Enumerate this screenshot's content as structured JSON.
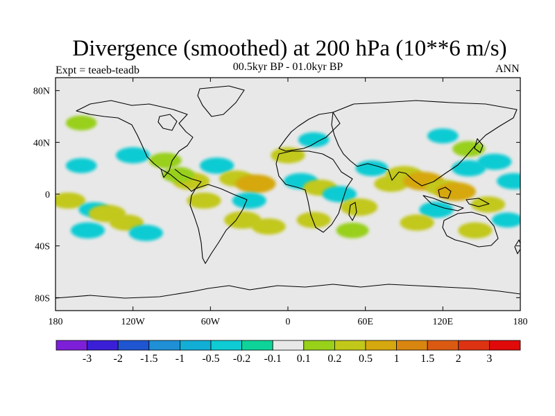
{
  "title": "Divergence (smoothed) at 200 hPa (10**6 m/s)",
  "experiment_label": "Expt = teaeb-teadb",
  "period_label": "00.5kyr BP - 01.0kyr BP",
  "season_label": "ANN",
  "map_data": {
    "projection": "cylindrical-equidistant",
    "lon_range": [
      -180,
      180
    ],
    "lat_range": [
      -90,
      90
    ],
    "lon_ticks": [
      {
        "value": -180,
        "label": "180"
      },
      {
        "value": -120,
        "label": "120W"
      },
      {
        "value": -60,
        "label": "60W"
      },
      {
        "value": 0,
        "label": "0"
      },
      {
        "value": 60,
        "label": "60E"
      },
      {
        "value": 120,
        "label": "120E"
      },
      {
        "value": 180,
        "label": "180"
      }
    ],
    "lat_ticks": [
      {
        "value": 80,
        "label": "80N"
      },
      {
        "value": 40,
        "label": "40N"
      },
      {
        "value": 0,
        "label": "0"
      },
      {
        "value": -40,
        "label": "40S"
      },
      {
        "value": -80,
        "label": "80S"
      }
    ],
    "background_color": "#e8e8e8",
    "patches": [
      {
        "lon": -120,
        "lat": 30,
        "v": -0.3
      },
      {
        "lon": -95,
        "lat": 26,
        "v": 0.25
      },
      {
        "lon": -160,
        "lat": 22,
        "v": -0.2
      },
      {
        "lon": -170,
        "lat": -5,
        "v": 0.3
      },
      {
        "lon": -150,
        "lat": -12,
        "v": -0.2
      },
      {
        "lon": -140,
        "lat": -15,
        "v": 0.4
      },
      {
        "lon": -155,
        "lat": -28,
        "v": -0.3
      },
      {
        "lon": -125,
        "lat": -22,
        "v": 0.3
      },
      {
        "lon": -110,
        "lat": -30,
        "v": -0.3
      },
      {
        "lon": -75,
        "lat": 10,
        "v": 0.4
      },
      {
        "lon": -85,
        "lat": 15,
        "v": 0.25
      },
      {
        "lon": -65,
        "lat": -5,
        "v": 0.3
      },
      {
        "lon": -55,
        "lat": 22,
        "v": -0.3
      },
      {
        "lon": -40,
        "lat": 12,
        "v": 0.3
      },
      {
        "lon": -25,
        "lat": 8,
        "v": 0.5
      },
      {
        "lon": -30,
        "lat": -5,
        "v": -0.3
      },
      {
        "lon": -35,
        "lat": -20,
        "v": 0.4
      },
      {
        "lon": -15,
        "lat": -25,
        "v": 0.3
      },
      {
        "lon": 0,
        "lat": 30,
        "v": 0.3
      },
      {
        "lon": 10,
        "lat": 10,
        "v": -0.3
      },
      {
        "lon": 25,
        "lat": 5,
        "v": 0.3
      },
      {
        "lon": 40,
        "lat": 0,
        "v": -0.3
      },
      {
        "lon": 20,
        "lat": -20,
        "v": 0.3
      },
      {
        "lon": 55,
        "lat": -10,
        "v": 0.4
      },
      {
        "lon": 50,
        "lat": -28,
        "v": 0.25
      },
      {
        "lon": 65,
        "lat": 20,
        "v": -0.25
      },
      {
        "lon": 80,
        "lat": 8,
        "v": 0.3
      },
      {
        "lon": 90,
        "lat": 15,
        "v": 0.4
      },
      {
        "lon": 105,
        "lat": 10,
        "v": 0.5
      },
      {
        "lon": 120,
        "lat": 5,
        "v": 0.3
      },
      {
        "lon": 130,
        "lat": 2,
        "v": 0.5
      },
      {
        "lon": 115,
        "lat": -12,
        "v": -0.3
      },
      {
        "lon": 100,
        "lat": -22,
        "v": 0.3
      },
      {
        "lon": 140,
        "lat": 20,
        "v": -0.3
      },
      {
        "lon": 160,
        "lat": 25,
        "v": -0.3
      },
      {
        "lon": 175,
        "lat": 10,
        "v": -0.3
      },
      {
        "lon": 155,
        "lat": -8,
        "v": 0.3
      },
      {
        "lon": 145,
        "lat": -28,
        "v": 0.3
      },
      {
        "lon": 170,
        "lat": -20,
        "v": -0.2
      },
      {
        "lon": 120,
        "lat": 45,
        "v": -0.2
      },
      {
        "lon": 140,
        "lat": 35,
        "v": 0.25
      },
      {
        "lon": -160,
        "lat": 55,
        "v": 0.2
      },
      {
        "lon": 20,
        "lat": 42,
        "v": -0.2
      }
    ]
  },
  "colorbar": {
    "colors": [
      "#7d1fd8",
      "#3b1fd6",
      "#1f55d1",
      "#1f8fd6",
      "#12aed6",
      "#0fcbd3",
      "#0ed49a",
      "#e8e8e8",
      "#98d01a",
      "#c2c81a",
      "#d6a80f",
      "#d8860f",
      "#db5a12",
      "#dd3313",
      "#e00a0a"
    ],
    "labels": [
      "-3",
      "-2",
      "-1.5",
      "-1",
      "-0.5",
      "-0.2",
      "-0.1",
      "0.1",
      "0.2",
      "0.5",
      "1",
      "1.5",
      "2",
      "3"
    ]
  }
}
